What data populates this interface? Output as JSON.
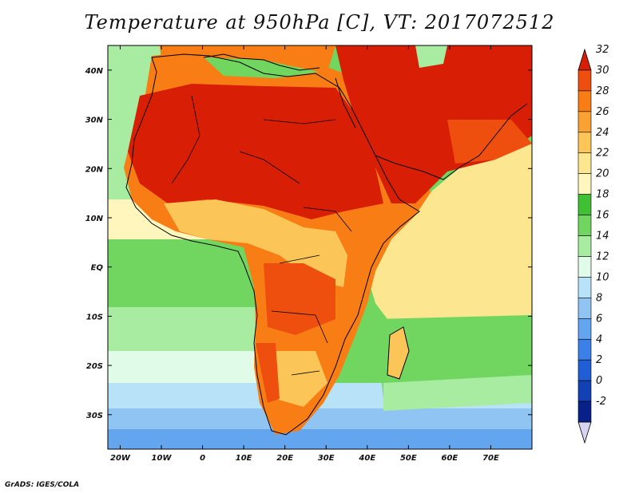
{
  "title": "Temperature at 950hPa [C], VT: 2017072512",
  "credit": "GrADS: IGES/COLA",
  "map": {
    "lon_range": [
      -23,
      80
    ],
    "lat_range": [
      -37,
      45
    ],
    "x_ticks": [
      {
        "lon": -20,
        "label": "20W"
      },
      {
        "lon": -10,
        "label": "10W"
      },
      {
        "lon": 0,
        "label": "0"
      },
      {
        "lon": 10,
        "label": "10E"
      },
      {
        "lon": 20,
        "label": "20E"
      },
      {
        "lon": 30,
        "label": "30E"
      },
      {
        "lon": 40,
        "label": "40E"
      },
      {
        "lon": 50,
        "label": "50E"
      },
      {
        "lon": 60,
        "label": "60E"
      },
      {
        "lon": 70,
        "label": "70E"
      }
    ],
    "y_ticks": [
      {
        "lat": 40,
        "label": "40N"
      },
      {
        "lat": 30,
        "label": "30N"
      },
      {
        "lat": 20,
        "label": "20N"
      },
      {
        "lat": 10,
        "label": "10N"
      },
      {
        "lat": 0,
        "label": "EQ"
      },
      {
        "lat": -10,
        "label": "10S"
      },
      {
        "lat": -20,
        "label": "20S"
      },
      {
        "lat": -30,
        "label": "30S"
      }
    ]
  },
  "colorbar": {
    "levels": [
      "32",
      "30",
      "28",
      "26",
      "24",
      "22",
      "20",
      "18",
      "16",
      "14",
      "12",
      "10",
      "8",
      "6",
      "4",
      "2",
      "0",
      "-2"
    ],
    "colors": [
      "#d81e05",
      "#ee4f0f",
      "#f77d14",
      "#f9a232",
      "#fbc657",
      "#fde690",
      "#fef6bd",
      "#3fc035",
      "#71d660",
      "#a7eca0",
      "#e0fce8",
      "#b7e2f7",
      "#8fc4f3",
      "#64a5ef",
      "#3b80e8",
      "#1f5ed4",
      "#1141b5",
      "#07208a",
      "#d9d3f2"
    ]
  }
}
